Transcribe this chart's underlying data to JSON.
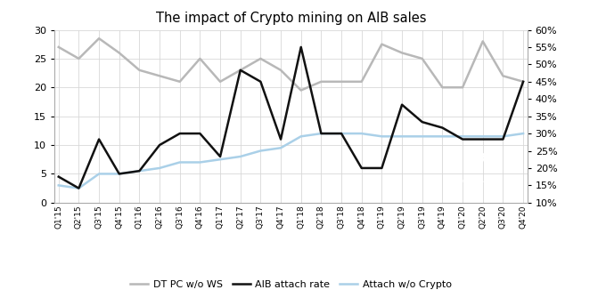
{
  "title": "The impact of Crypto mining on AIB sales",
  "x_labels": [
    "Q1'15",
    "Q2'15",
    "Q3'15",
    "Q4'15",
    "Q1'16",
    "Q2'16",
    "Q3'16",
    "Q4'16",
    "Q1'17",
    "Q2'17",
    "Q3'17",
    "Q4'17",
    "Q1'18",
    "Q2'18",
    "Q3'18",
    "Q4'18",
    "Q1'19",
    "Q2'19",
    "Q3'19",
    "Q4'19",
    "Q1'20",
    "Q2'20",
    "Q3'20",
    "Q4'20"
  ],
  "dt_pc_wo_ws": [
    27,
    25,
    28.5,
    26,
    23,
    22,
    21,
    25,
    21,
    23,
    25,
    23,
    19.5,
    21,
    21,
    21,
    27.5,
    26,
    25,
    20,
    20,
    28,
    22,
    21
  ],
  "aib_attach_rate": [
    4.5,
    2.5,
    11,
    5,
    5.5,
    10,
    12,
    12,
    8,
    23,
    21,
    11,
    27,
    12,
    12,
    6,
    6,
    17,
    14,
    13,
    11,
    11,
    11,
    21
  ],
  "attach_wo_crypto": [
    3,
    2.5,
    5,
    5,
    5.5,
    6,
    7,
    7,
    7.5,
    8,
    9,
    9.5,
    11.5,
    12,
    12,
    12,
    11.5,
    11.5,
    11.5,
    11.5,
    11.5,
    11.5,
    11.5,
    12
  ],
  "color_dt": "#b8b8b8",
  "color_aib": "#111111",
  "color_attach": "#aad0e8",
  "ylim_left": [
    0,
    30
  ],
  "ylim_right": [
    10,
    60
  ],
  "right_ticks": [
    10,
    15,
    20,
    25,
    30,
    35,
    40,
    45,
    50,
    55,
    60
  ],
  "left_ticks": [
    0,
    5,
    10,
    15,
    20,
    25,
    30
  ],
  "legend_labels": [
    "DT PC w/o WS",
    "AIB attach rate",
    "Attach w/o Crypto"
  ]
}
